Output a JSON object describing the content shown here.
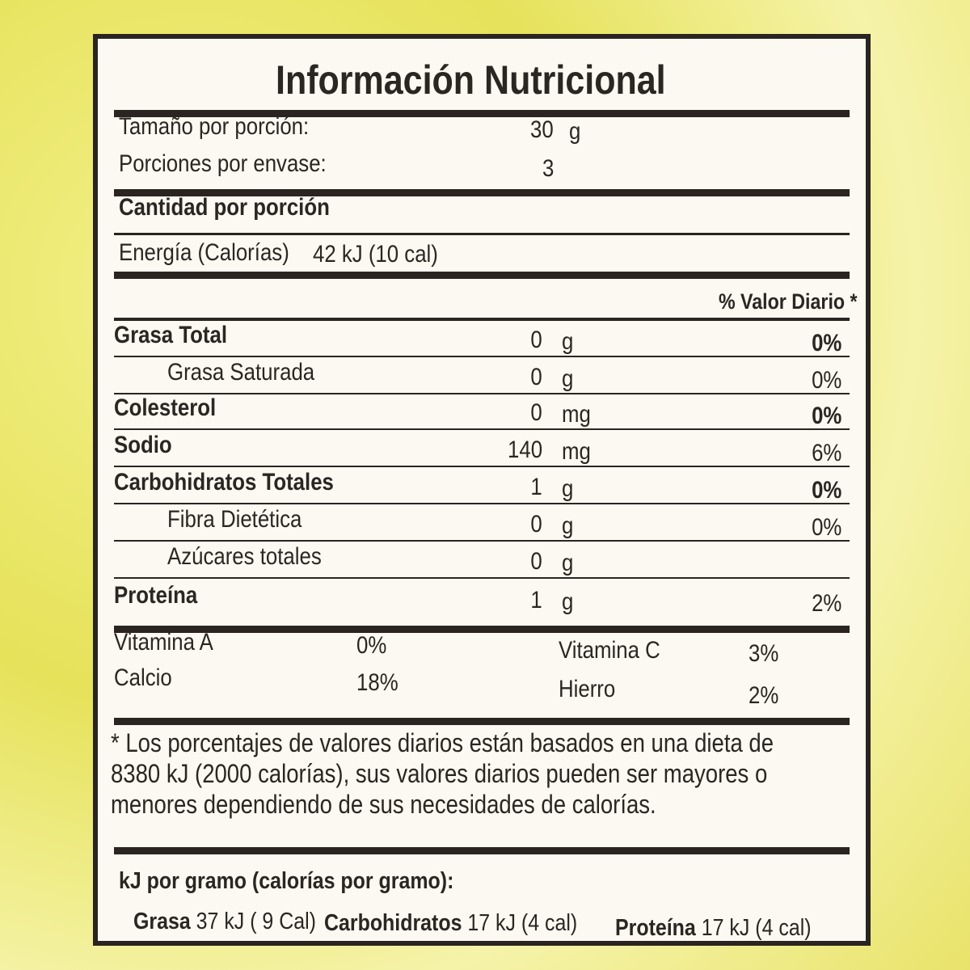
{
  "title": "Información Nutricional",
  "serving_size": {
    "label": "Tamaño por porción:",
    "value": "30",
    "unit": "g"
  },
  "servings": {
    "label": "Porciones por envase:",
    "value": "3"
  },
  "amount_header": "Cantidad por porción",
  "energy": {
    "label": "Energía (Calorías)",
    "value": "42 kJ  (10 cal)"
  },
  "dv_header": "% Valor Diario *",
  "nutrients": [
    {
      "name": "Grasa Total",
      "amount": "0",
      "unit": "g",
      "dv": "0%",
      "bold": true,
      "indent": false
    },
    {
      "name": "Grasa Saturada",
      "amount": "0",
      "unit": "g",
      "dv": "0%",
      "bold": false,
      "indent": true
    },
    {
      "name": "Colesterol",
      "amount": "0",
      "unit": "mg",
      "dv": "0%",
      "bold": true,
      "indent": false
    },
    {
      "name": "Sodio",
      "amount": "140",
      "unit": "mg",
      "dv": "6%",
      "bold": true,
      "indent": false
    },
    {
      "name": "Carbohidratos Totales",
      "amount": "1",
      "unit": "g",
      "dv": "0%",
      "bold": true,
      "indent": false
    },
    {
      "name": "Fibra Dietética",
      "amount": "0",
      "unit": "g",
      "dv": "0%",
      "bold": false,
      "indent": true
    },
    {
      "name": "Azúcares totales",
      "amount": "0",
      "unit": "g",
      "dv": "",
      "bold": false,
      "indent": true
    },
    {
      "name": "Proteína",
      "amount": "1",
      "unit": "g",
      "dv": "2%",
      "bold": true,
      "indent": false
    }
  ],
  "vitamins": [
    {
      "name": "Vitamina A",
      "value": "0%"
    },
    {
      "name": "Calcio",
      "value": "18%"
    },
    {
      "name": "Vitamina C",
      "value": "3%"
    },
    {
      "name": "Hierro",
      "value": "2%"
    }
  ],
  "footnote": [
    "* Los porcentajes de valores diarios están basados en una dieta de",
    "8380 kJ (2000 calorías),  sus valores  diarios  pueden ser mayores o",
    "menores dependiendo de sus necesidades de calorías."
  ],
  "per_gram": {
    "header": "kJ por gramo (calorías por gramo):",
    "items": [
      {
        "name": "Grasa",
        "value": "37 kJ ( 9 Cal)"
      },
      {
        "name": "Carbohidratos",
        "value": "17 kJ (4 cal)"
      },
      {
        "name": "Proteína",
        "value": "17 kJ (4 cal)"
      }
    ]
  }
}
